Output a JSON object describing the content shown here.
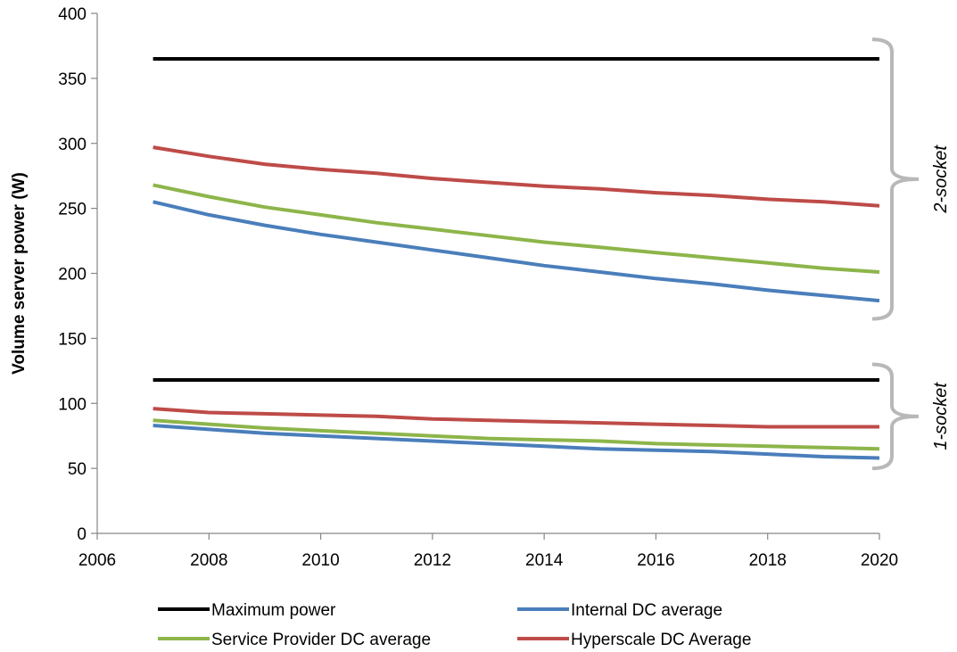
{
  "chart_data": {
    "type": "line",
    "title": "",
    "xlabel": "",
    "ylabel": "Volume server power (W)",
    "xlim": [
      2006,
      2020
    ],
    "ylim": [
      0,
      400
    ],
    "x_ticks": [
      "2006",
      "2008",
      "2010",
      "2012",
      "2014",
      "2016",
      "2018",
      "2020"
    ],
    "y_ticks": [
      "0",
      "50",
      "100",
      "150",
      "200",
      "250",
      "300",
      "350",
      "400"
    ],
    "grid": false,
    "legend_position": "bottom",
    "x": [
      2007,
      2008,
      2009,
      2010,
      2011,
      2012,
      2013,
      2014,
      2015,
      2016,
      2017,
      2018,
      2019,
      2020
    ],
    "series": [
      {
        "name": "Maximum power",
        "color": "#000000",
        "group": "2-socket",
        "values": [
          365,
          365,
          365,
          365,
          365,
          365,
          365,
          365,
          365,
          365,
          365,
          365,
          365,
          365
        ]
      },
      {
        "name": "Internal DC average",
        "color": "#4a7ebb",
        "group": "2-socket",
        "values": [
          255,
          245,
          237,
          230,
          224,
          218,
          212,
          206,
          201,
          196,
          192,
          187,
          183,
          179
        ]
      },
      {
        "name": "Service Provider DC average",
        "color": "#8db54a",
        "group": "2-socket",
        "values": [
          268,
          259,
          251,
          245,
          239,
          234,
          229,
          224,
          220,
          216,
          212,
          208,
          204,
          201
        ]
      },
      {
        "name": "Hyperscale DC Average",
        "color": "#be4b48",
        "group": "2-socket",
        "values": [
          297,
          290,
          284,
          280,
          277,
          273,
          270,
          267,
          265,
          262,
          260,
          257,
          255,
          252
        ]
      },
      {
        "name": "Maximum power",
        "color": "#000000",
        "group": "1-socket",
        "values": [
          118,
          118,
          118,
          118,
          118,
          118,
          118,
          118,
          118,
          118,
          118,
          118,
          118,
          118
        ]
      },
      {
        "name": "Internal DC average",
        "color": "#4a7ebb",
        "group": "1-socket",
        "values": [
          83,
          80,
          77,
          75,
          73,
          71,
          69,
          67,
          65,
          64,
          63,
          61,
          59,
          58
        ]
      },
      {
        "name": "Service Provider DC average",
        "color": "#8db54a",
        "group": "1-socket",
        "values": [
          87,
          84,
          81,
          79,
          77,
          75,
          73,
          72,
          71,
          69,
          68,
          67,
          66,
          65
        ]
      },
      {
        "name": "Hyperscale DC Average",
        "color": "#be4b48",
        "group": "1-socket",
        "values": [
          96,
          93,
          92,
          91,
          90,
          88,
          87,
          86,
          85,
          84,
          83,
          82,
          82,
          82
        ]
      }
    ],
    "legend": [
      {
        "label": "Maximum power",
        "color": "#000000"
      },
      {
        "label": "Internal DC average",
        "color": "#4a7ebb"
      },
      {
        "label": "Service Provider DC average",
        "color": "#8db54a"
      },
      {
        "label": "Hyperscale DC Average",
        "color": "#be4b48"
      }
    ],
    "annotations": [
      {
        "text": "2-socket",
        "range": [
          165,
          380
        ]
      },
      {
        "text": "1-socket",
        "range": [
          50,
          130
        ]
      }
    ]
  }
}
